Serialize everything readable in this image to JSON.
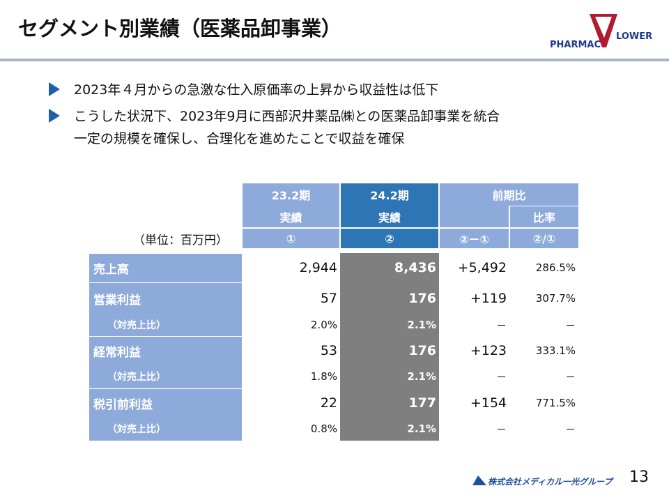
{
  "header": {
    "title": "セグメント別業績（医薬品卸事業）",
    "logo_left": "PHARMAC",
    "logo_right": "LOWER"
  },
  "bullets": [
    [
      "2023年４月からの急激な仕入原価率の上昇から収益性は低下"
    ],
    [
      "こうした状況下、2023年9月に西部沢井薬品㈱との医薬品卸事業を統合",
      "一定の規模を確保し、合理化を進めたことで収益を確保"
    ]
  ],
  "table": {
    "unit": "（単位：百万円）",
    "head": {
      "col1": [
        "23.2期",
        "実績",
        "①"
      ],
      "col2": [
        "24.2期",
        "実績",
        "②"
      ],
      "compare": "前期比",
      "diff": "②－①",
      "ratio_title": "比率",
      "ratio": "②/①"
    },
    "rows": [
      {
        "label": "売上高",
        "cells": [
          "2,944",
          "8,436",
          "+5,492",
          "286.5%"
        ]
      },
      {
        "label": "営業利益",
        "cells": [
          "57",
          "176",
          "+119",
          "307.7%"
        ]
      },
      {
        "label": "（対売上比）",
        "cells": [
          "2.0%",
          "2.1%",
          "－",
          "－"
        ]
      },
      {
        "label": "経常利益",
        "cells": [
          "53",
          "176",
          "+123",
          "333.1%"
        ]
      },
      {
        "label": "（対売上比）",
        "cells": [
          "1.8%",
          "2.1%",
          "－",
          "－"
        ]
      },
      {
        "label": "税引前利益",
        "cells": [
          "22",
          "177",
          "+154",
          "771.5%"
        ]
      },
      {
        "label": "（対売上比）",
        "cells": [
          "0.8%",
          "2.1%",
          "－",
          "－"
        ]
      }
    ]
  },
  "footer": {
    "company": "株式会社メディカル一光グループ",
    "page": "13"
  }
}
